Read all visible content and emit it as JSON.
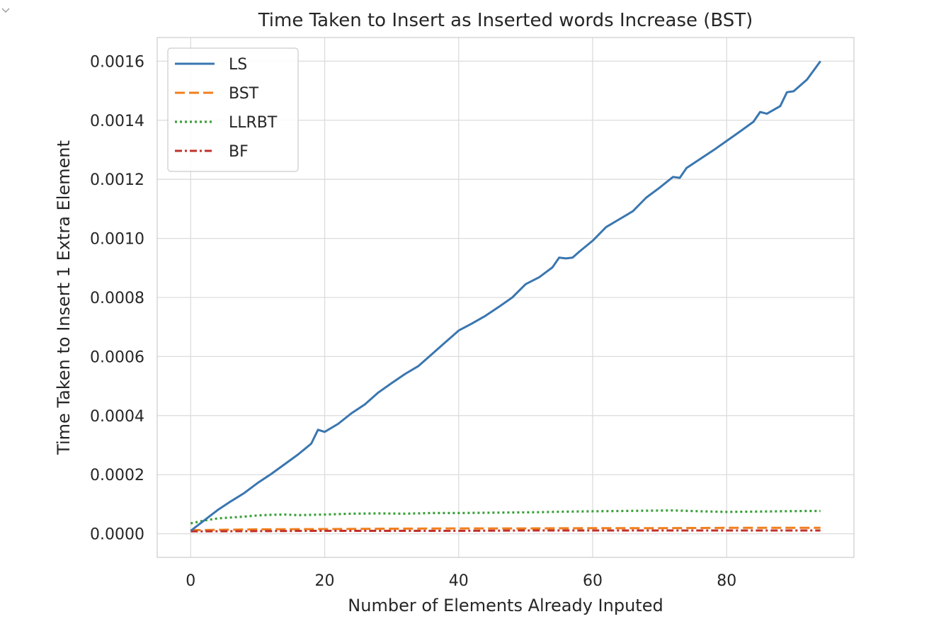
{
  "chart_data": {
    "type": "line",
    "title": "Time Taken to Insert as Inserted words Increase (BST)",
    "xlabel": "Number of Elements Already Inputed",
    "ylabel": "Time Taken to Insert 1 Extra Element",
    "xlim": [
      -5,
      99
    ],
    "ylim": [
      -8e-05,
      0.00168
    ],
    "xticks": [
      0,
      20,
      40,
      60,
      80
    ],
    "xtick_labels": [
      "0",
      "20",
      "40",
      "60",
      "80"
    ],
    "yticks": [
      0,
      0.0002,
      0.0004,
      0.0006,
      0.0008,
      0.001,
      0.0012,
      0.0014,
      0.0016
    ],
    "ytick_labels": [
      "0.0000",
      "0.0002",
      "0.0004",
      "0.0006",
      "0.0008",
      "0.0010",
      "0.0012",
      "0.0014",
      "0.0016"
    ],
    "grid": true,
    "legend_position": "top-left",
    "series": [
      {
        "name": "LS",
        "color": "#3a76b0",
        "dash": "solid",
        "x": [
          0,
          2,
          4,
          6,
          8,
          10,
          12,
          14,
          16,
          18,
          19,
          20,
          22,
          24,
          26,
          28,
          30,
          32,
          34,
          36,
          38,
          40,
          42,
          44,
          46,
          48,
          50,
          52,
          54,
          55,
          56,
          57,
          58,
          60,
          62,
          64,
          66,
          68,
          70,
          72,
          73,
          74,
          76,
          78,
          80,
          82,
          84,
          85,
          86,
          88,
          89,
          90,
          92,
          94
        ],
        "y": [
          1e-05,
          4.5e-05,
          8e-05,
          0.00011,
          0.000138,
          0.000172,
          0.000202,
          0.000235,
          0.000268,
          0.000305,
          0.000352,
          0.000345,
          0.000372,
          0.000408,
          0.000438,
          0.000478,
          0.00051,
          0.000541,
          0.000568,
          0.000608,
          0.000648,
          0.000688,
          0.000712,
          0.000738,
          0.000768,
          0.0008,
          0.000845,
          0.000868,
          0.000902,
          0.000935,
          0.000932,
          0.000935,
          0.000955,
          0.000992,
          0.001038,
          0.001065,
          0.001092,
          0.001138,
          0.001172,
          0.001208,
          0.001205,
          0.001238,
          0.001268,
          0.001298,
          0.00133,
          0.001362,
          0.001395,
          0.001428,
          0.001422,
          0.001448,
          0.001495,
          0.001498,
          0.001538,
          0.0016
        ]
      },
      {
        "name": "BST",
        "color": "#f07f1e",
        "dash": "dashed",
        "x": [
          0,
          10,
          20,
          30,
          40,
          50,
          60,
          70,
          80,
          90,
          94
        ],
        "y": [
          1.2e-05,
          1.5e-05,
          1.6e-05,
          1.7e-05,
          1.8e-05,
          1.8e-05,
          1.9e-05,
          1.9e-05,
          2e-05,
          2e-05,
          2e-05
        ]
      },
      {
        "name": "LLRBT",
        "color": "#3aa03a",
        "dash": "dotted",
        "x": [
          0,
          2,
          4,
          6,
          8,
          10,
          12,
          14,
          16,
          18,
          20,
          24,
          28,
          32,
          36,
          40,
          44,
          48,
          52,
          56,
          60,
          64,
          68,
          72,
          76,
          80,
          84,
          88,
          92,
          94
        ],
        "y": [
          3.5e-05,
          4.5e-05,
          5.2e-05,
          5.5e-05,
          5.8e-05,
          6.2e-05,
          6.4e-05,
          6.5e-05,
          6.3e-05,
          6.4e-05,
          6.5e-05,
          6.8e-05,
          6.9e-05,
          6.8e-05,
          7e-05,
          7e-05,
          7.1e-05,
          7.2e-05,
          7.3e-05,
          7.5e-05,
          7.6e-05,
          7.7e-05,
          7.8e-05,
          7.9e-05,
          7.6e-05,
          7.4e-05,
          7.5e-05,
          7.6e-05,
          7.7e-05,
          7.7e-05
        ]
      },
      {
        "name": "BF",
        "color": "#c0302b",
        "dash": "dashdot",
        "x": [
          0,
          10,
          20,
          30,
          40,
          50,
          60,
          70,
          80,
          90,
          94
        ],
        "y": [
          8e-06,
          9e-06,
          1e-05,
          1e-05,
          1e-05,
          1.1e-05,
          1.1e-05,
          1.1e-05,
          1.1e-05,
          1.1e-05,
          1.1e-05
        ]
      }
    ]
  },
  "ui": {
    "collapse_icon": "chevron-down-icon"
  }
}
